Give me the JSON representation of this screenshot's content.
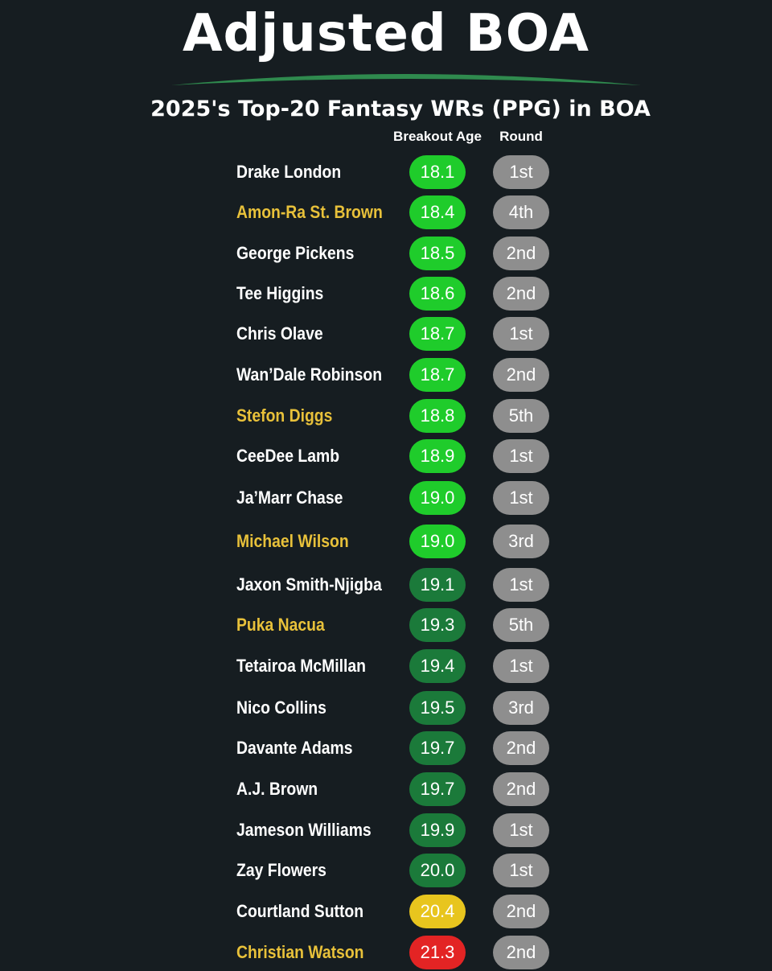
{
  "title": "Adjusted BOA",
  "subtitle": "2025's Top-20 Fantasy WRs (PPG) in BOA",
  "columns": {
    "breakout_age": "Breakout Age",
    "round": "Round"
  },
  "colors": {
    "background": "#161d21",
    "highlight_name": "#e8c13a",
    "age_bright_green": "#1fcc2b",
    "age_dark_green": "#1b7a3a",
    "age_yellow": "#e8c51e",
    "age_red": "#e32424",
    "round_gray": "#8e8e8e",
    "arc_green": "#2f8a4e"
  },
  "players": [
    {
      "name": "Drake London",
      "age": "18.1",
      "round": "1st",
      "highlight": false,
      "age_color": "bright"
    },
    {
      "name": "Amon-Ra St. Brown",
      "age": "18.4",
      "round": "4th",
      "highlight": true,
      "age_color": "bright"
    },
    {
      "name": "George Pickens",
      "age": "18.5",
      "round": "2nd",
      "highlight": false,
      "age_color": "bright"
    },
    {
      "name": "Tee Higgins",
      "age": "18.6",
      "round": "2nd",
      "highlight": false,
      "age_color": "bright"
    },
    {
      "name": "Chris Olave",
      "age": "18.7",
      "round": "1st",
      "highlight": false,
      "age_color": "bright"
    },
    {
      "name": "Wan’Dale Robinson",
      "age": "18.7",
      "round": "2nd",
      "highlight": false,
      "age_color": "bright"
    },
    {
      "name": "Stefon Diggs",
      "age": "18.8",
      "round": "5th",
      "highlight": true,
      "age_color": "bright"
    },
    {
      "name": "CeeDee Lamb",
      "age": "18.9",
      "round": "1st",
      "highlight": false,
      "age_color": "bright"
    },
    {
      "name": "Ja’Marr Chase",
      "age": "19.0",
      "round": "1st",
      "highlight": false,
      "age_color": "bright"
    },
    {
      "name": "Michael Wilson",
      "age": "19.0",
      "round": "3rd",
      "highlight": true,
      "age_color": "bright"
    },
    {
      "name": "Jaxon Smith-Njigba",
      "age": "19.1",
      "round": "1st",
      "highlight": false,
      "age_color": "dark"
    },
    {
      "name": "Puka Nacua",
      "age": "19.3",
      "round": "5th",
      "highlight": true,
      "age_color": "dark"
    },
    {
      "name": "Tetairoa McMillan",
      "age": "19.4",
      "round": "1st",
      "highlight": false,
      "age_color": "dark"
    },
    {
      "name": "Nico Collins",
      "age": "19.5",
      "round": "3rd",
      "highlight": false,
      "age_color": "dark"
    },
    {
      "name": "Davante Adams",
      "age": "19.7",
      "round": "2nd",
      "highlight": false,
      "age_color": "dark"
    },
    {
      "name": "A.J. Brown",
      "age": "19.7",
      "round": "2nd",
      "highlight": false,
      "age_color": "dark"
    },
    {
      "name": "Jameson Williams",
      "age": "19.9",
      "round": "1st",
      "highlight": false,
      "age_color": "dark"
    },
    {
      "name": "Zay Flowers",
      "age": "20.0",
      "round": "1st",
      "highlight": false,
      "age_color": "dark"
    },
    {
      "name": "Courtland Sutton",
      "age": "20.4",
      "round": "2nd",
      "highlight": false,
      "age_color": "yellow"
    },
    {
      "name": "Christian Watson",
      "age": "21.3",
      "round": "2nd",
      "highlight": true,
      "age_color": "red"
    }
  ]
}
